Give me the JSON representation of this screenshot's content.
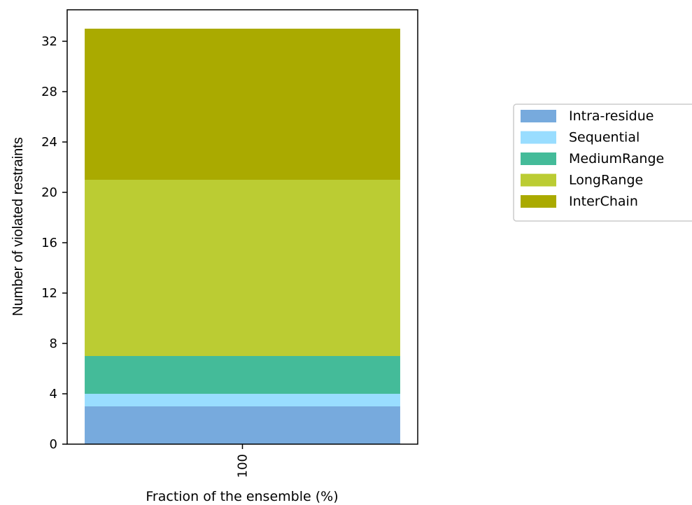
{
  "chart_data": {
    "type": "bar",
    "stacked": true,
    "categories": [
      "100"
    ],
    "xlabel": "Fraction of the ensemble (%)",
    "ylabel": "Number of violated restraints",
    "ylim": [
      0,
      34.5
    ],
    "yticks": [
      0,
      4,
      8,
      12,
      16,
      20,
      24,
      28,
      32
    ],
    "xtick_rotation": 90,
    "grid": false,
    "legend_position": "right",
    "series": [
      {
        "name": "Intra-residue",
        "values": [
          3
        ],
        "color": "#77aadd"
      },
      {
        "name": "Sequential",
        "values": [
          1
        ],
        "color": "#99ddff"
      },
      {
        "name": "MediumRange",
        "values": [
          3
        ],
        "color": "#44bb99"
      },
      {
        "name": "LongRange",
        "values": [
          14
        ],
        "color": "#bbcc33"
      },
      {
        "name": "InterChain",
        "values": [
          12
        ],
        "color": "#aaaa00"
      }
    ]
  }
}
